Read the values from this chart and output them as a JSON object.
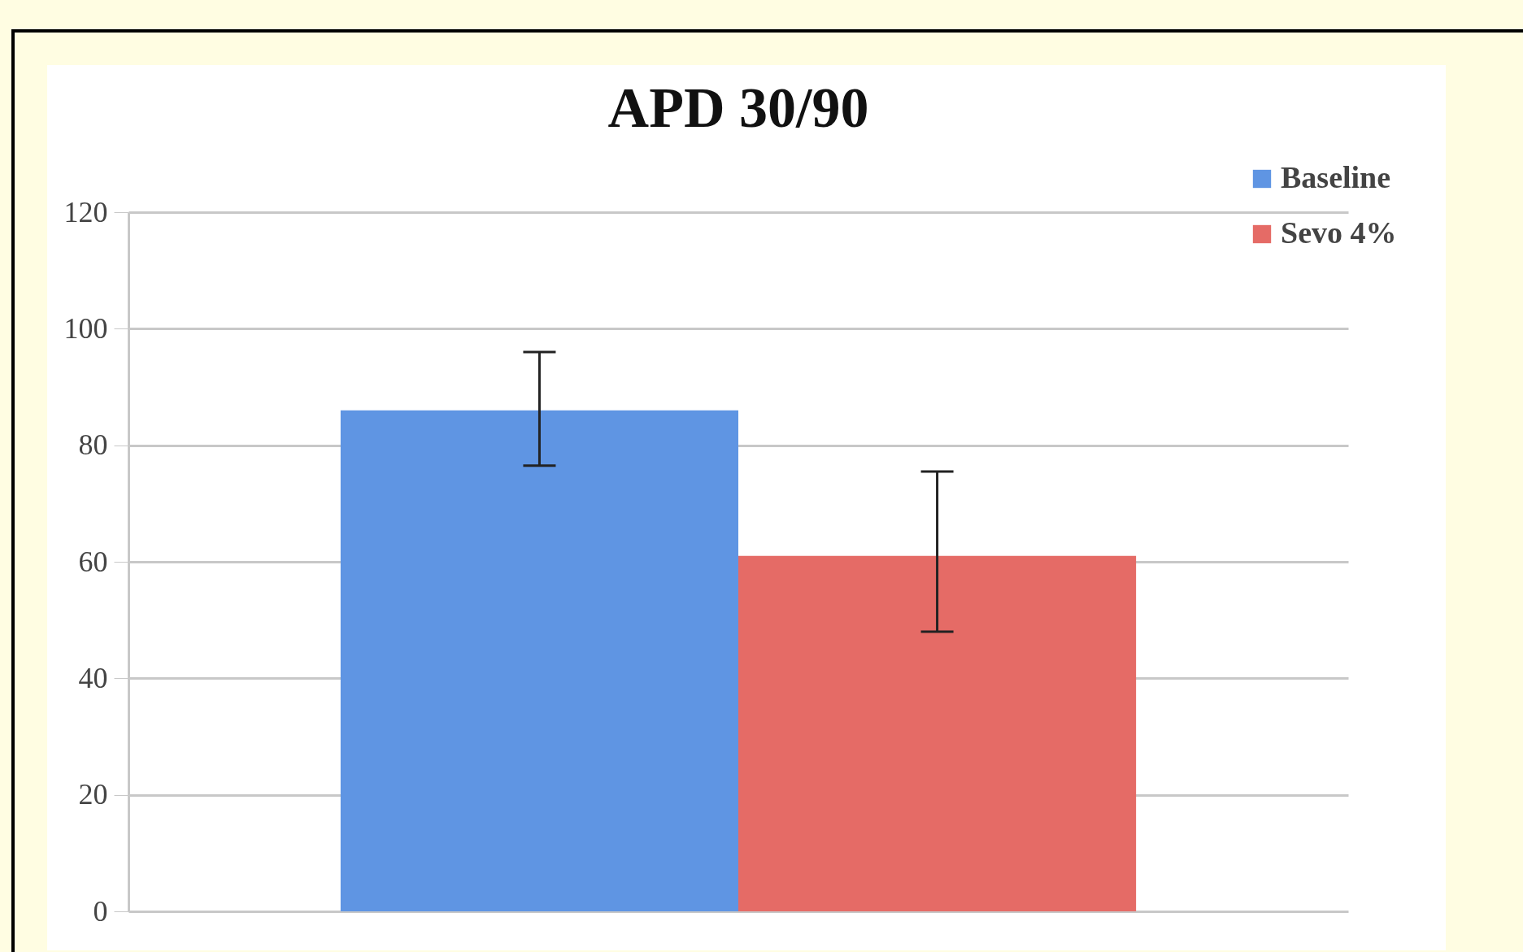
{
  "chart_data": {
    "type": "bar",
    "title": "APD  30/90",
    "categories": [
      null
    ],
    "series": [
      {
        "name": "Baseline",
        "color": "#5f95e3",
        "values": [
          86
        ],
        "errors": [
          [
            76.5,
            96
          ]
        ]
      },
      {
        "name": "Sevo 4%",
        "color": "#e56b66",
        "values": [
          61
        ],
        "errors": [
          [
            48,
            75.5
          ]
        ]
      }
    ],
    "ylim": [
      0,
      120
    ],
    "yticks": [
      0,
      20,
      40,
      60,
      80,
      100,
      120
    ],
    "grid": "y",
    "legend": "top right"
  }
}
